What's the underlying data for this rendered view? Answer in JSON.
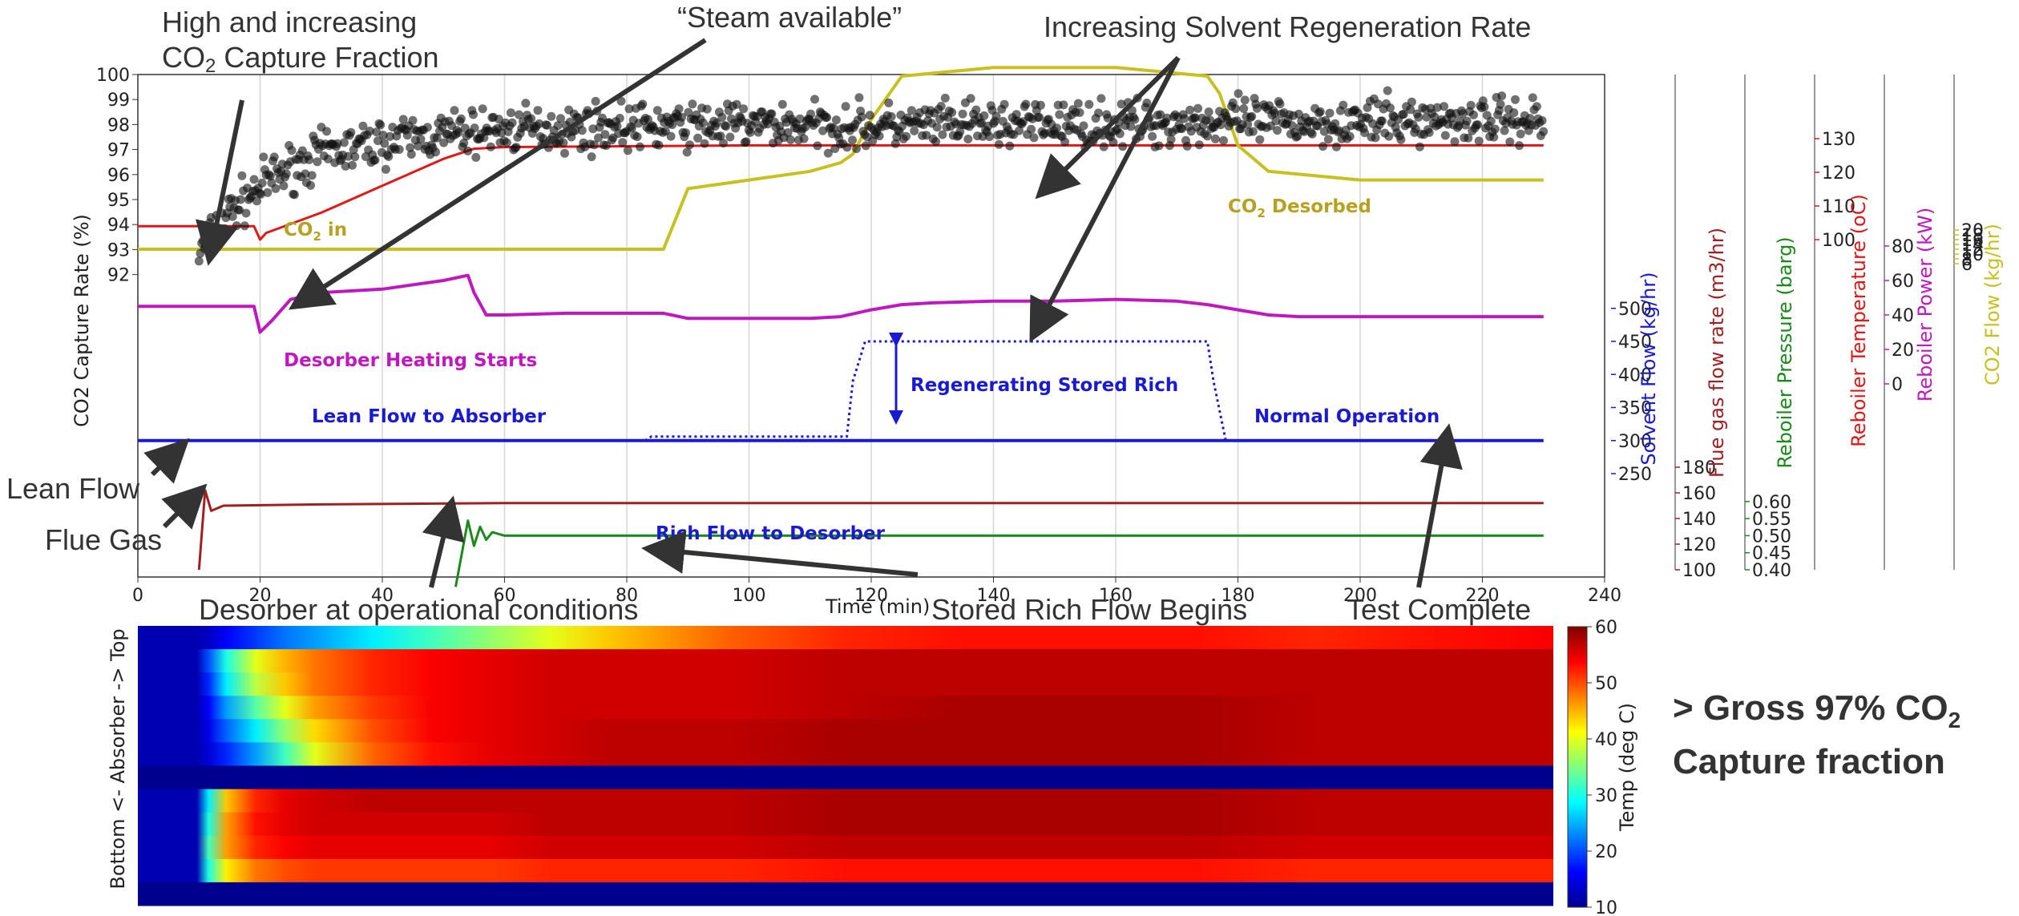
{
  "chart_data": [
    {
      "type": "line",
      "xlabel": "Time (min)",
      "xlim": [
        0,
        240
      ],
      "x_ticks": [
        "0",
        "20",
        "40",
        "60",
        "80",
        "100",
        "120",
        "140",
        "160",
        "180",
        "200",
        "220",
        "240"
      ],
      "ylabel": "CO2 Capture Rate (%)",
      "y_ticks": [
        "100",
        "99",
        "98",
        "97",
        "96",
        "95",
        "94",
        "93",
        "92"
      ],
      "grid": "vertical",
      "right_axes": [
        {
          "label": "Solvent Flow (kg/hr)",
          "color": "#1a1ad0",
          "ticks": [
            "500",
            "450",
            "400",
            "350",
            "300",
            "250"
          ]
        },
        {
          "label": "Flue gas flow rate (m3/hr)",
          "color": "#a02020",
          "ticks": [
            "180",
            "160",
            "140",
            "120",
            "100"
          ]
        },
        {
          "label": "Reboiler Pressure (barg)",
          "color": "#1a8a1a",
          "ticks": [
            "0.60",
            "0.55",
            "0.50",
            "0.45",
            "0.40"
          ]
        },
        {
          "label": "Reboiler Temperature (oC)",
          "color": "#e01818",
          "ticks": [
            "130",
            "120",
            "110",
            "100"
          ]
        },
        {
          "label": "Reboiler Power (kW)",
          "color": "#c018c0",
          "ticks": [
            "80",
            "60",
            "40",
            "20",
            "0"
          ]
        },
        {
          "label": "CO2 Flow (kg/hr)",
          "color": "#c8c020",
          "ticks": [
            "20",
            "18",
            "16",
            "14",
            "12",
            "10",
            "8",
            "6"
          ]
        }
      ],
      "series": [
        {
          "key": "capture",
          "color": "#222222",
          "x": [
            10,
            15,
            20,
            25,
            30,
            40,
            50,
            60,
            80,
            100,
            120,
            140,
            160,
            180,
            200,
            220,
            230
          ],
          "y": [
            92.8,
            94.5,
            95.5,
            96.3,
            96.8,
            97.3,
            97.6,
            97.8,
            97.9,
            98.0,
            97.9,
            98.0,
            98.0,
            98.1,
            98.1,
            98.2,
            98.2
          ]
        },
        {
          "key": "reboiler_temp",
          "color": "#e01818",
          "x": [
            0,
            19,
            20,
            21,
            30,
            40,
            50,
            55,
            60,
            100,
            150,
            230
          ],
          "y": [
            104,
            104,
            100,
            102,
            108,
            116,
            124,
            127,
            127.5,
            128,
            128,
            128
          ]
        },
        {
          "key": "reboiler_power",
          "color": "#c018c0",
          "x": [
            0,
            19,
            20,
            22,
            25,
            30,
            40,
            50,
            54,
            55,
            57,
            60,
            70,
            80,
            86,
            90,
            100,
            110,
            115,
            120,
            125,
            130,
            140,
            150,
            160,
            170,
            175,
            180,
            185,
            190,
            200,
            220,
            230
          ],
          "y": [
            100,
            100,
            85,
            92,
            104,
            108,
            110,
            115,
            118,
            108,
            95,
            95,
            96,
            96,
            96,
            93,
            93,
            93,
            94,
            98,
            101,
            102,
            103,
            103,
            104,
            103,
            101,
            98,
            95,
            94,
            94,
            94,
            94
          ]
        },
        {
          "key": "co2_flow",
          "color": "#c8c020",
          "x": [
            0,
            20,
            25,
            40,
            50,
            55,
            60,
            80,
            86,
            90,
            100,
            110,
            115,
            117,
            120,
            125,
            140,
            160,
            175,
            177,
            180,
            185,
            200,
            230
          ],
          "y": [
            100,
            100,
            100,
            100,
            100,
            100,
            100,
            100,
            100,
            107,
            108,
            109,
            110,
            111,
            115,
            120,
            121,
            121,
            120,
            118,
            112,
            109,
            108,
            108
          ]
        },
        {
          "key": "lean_flow",
          "color": "#1a1ad0",
          "x": [
            0,
            230
          ],
          "y": [
            300,
            300
          ]
        },
        {
          "key": "rich_flow",
          "color": "#1a1ad0",
          "x": [
            83,
            84,
            116,
            117,
            119,
            175,
            176,
            178
          ],
          "y": [
            300,
            306,
            306,
            390,
            450,
            450,
            390,
            300
          ]
        },
        {
          "key": "flue_gas",
          "color": "#a02020",
          "x": [
            10,
            11,
            12,
            14,
            30,
            60,
            90,
            120,
            150,
            180,
            210,
            230
          ],
          "y": [
            100,
            162,
            146,
            150,
            151,
            152,
            152,
            152,
            152,
            152,
            152,
            152
          ]
        },
        {
          "key": "reboiler_pressure",
          "color": "#1a8a1a",
          "x": [
            52,
            54,
            55,
            56,
            57,
            58,
            60,
            80,
            100,
            130,
            160,
            190,
            230
          ],
          "y": [
            0.35,
            0.544,
            0.47,
            0.526,
            0.488,
            0.51,
            0.5,
            0.5,
            0.5,
            0.5,
            0.5,
            0.5,
            0.5
          ]
        }
      ],
      "labels": {
        "co2_in": "CO",
        "co2_in_rest": " in",
        "co2_desorbed": "CO",
        "co2_desorbed_rest": " Desorbed",
        "sub2": "2",
        "desorber_heating": "Desorber Heating Starts",
        "lean_to_absorber": "Lean Flow to Absorber",
        "regenerating": "Regenerating Stored Rich",
        "normal_operation": "Normal Operation",
        "rich_to_desorber": "Rich Flow to Desorber"
      }
    },
    {
      "type": "heatmap",
      "ylabel": "Bottom <- Absorber -> Top",
      "colorbar_label": "Temp (deg C)",
      "colorbar_ticks": [
        "60",
        "50",
        "40",
        "30",
        "20",
        "10"
      ],
      "vmin": 10,
      "vmax": 60,
      "x": [
        0,
        10,
        12,
        15,
        20,
        25,
        30,
        40,
        50,
        60,
        70,
        80,
        100,
        120,
        140,
        160,
        180,
        200,
        220,
        240
      ],
      "rows": [
        [
          12,
          12,
          13,
          16,
          19,
          22,
          24,
          28,
          32,
          36,
          40,
          44,
          49,
          52,
          53,
          53,
          53,
          52,
          53,
          54
        ],
        [
          12,
          12,
          20,
          30,
          40,
          45,
          48,
          52,
          54,
          55,
          56,
          56,
          56,
          57,
          57,
          57,
          57,
          57,
          57,
          57
        ],
        [
          12,
          12,
          18,
          28,
          38,
          44,
          48,
          52,
          54,
          55,
          56,
          56,
          56,
          57,
          57,
          57,
          57,
          57,
          57,
          57
        ],
        [
          12,
          12,
          16,
          24,
          33,
          40,
          46,
          51,
          54,
          55,
          56,
          56,
          56,
          57,
          58,
          58,
          58,
          57,
          57,
          57
        ],
        [
          12,
          12,
          15,
          21,
          28,
          36,
          43,
          50,
          54,
          55,
          56,
          57,
          57,
          58,
          58,
          58,
          58,
          57,
          57,
          57
        ],
        [
          12,
          12,
          14,
          18,
          24,
          32,
          40,
          49,
          53,
          55,
          56,
          57,
          57,
          58,
          58,
          58,
          58,
          57,
          57,
          57
        ],
        [
          10,
          10,
          10,
          10,
          10,
          10,
          10,
          10,
          10,
          10,
          10,
          10,
          10,
          10,
          10,
          10,
          10,
          10,
          10,
          10
        ],
        [
          12,
          12,
          28,
          44,
          52,
          55,
          56,
          57,
          57,
          57,
          57,
          57,
          57,
          58,
          58,
          58,
          58,
          57,
          57,
          57
        ],
        [
          12,
          12,
          30,
          46,
          53,
          55,
          56,
          56,
          56,
          56,
          57,
          57,
          57,
          58,
          58,
          58,
          58,
          57,
          57,
          57
        ],
        [
          12,
          12,
          32,
          46,
          52,
          54,
          55,
          55,
          55,
          55,
          56,
          56,
          56,
          57,
          57,
          57,
          57,
          56,
          56,
          56
        ],
        [
          12,
          12,
          30,
          42,
          48,
          50,
          51,
          51,
          51,
          51,
          52,
          52,
          52,
          53,
          53,
          53,
          53,
          52,
          52,
          52
        ],
        [
          10,
          10,
          10,
          10,
          10,
          10,
          10,
          10,
          10,
          10,
          10,
          10,
          10,
          10,
          10,
          10,
          10,
          10,
          10,
          10
        ]
      ]
    }
  ],
  "annotations": {
    "high_capture_1": "High and increasing",
    "high_capture_2": "CO",
    "high_capture_sub": "2",
    "high_capture_3": " Capture Fraction",
    "steam": "“Steam available”",
    "increasing_regen": "Increasing Solvent Regeneration Rate",
    "lean_flow": "Lean Flow",
    "flue_gas": "Flue Gas",
    "desorber_operational": "Desorber at operational conditions",
    "stored_rich": "Stored Rich Flow Begins",
    "test_complete": "Test Complete"
  },
  "headline": {
    "line1": "> Gross 97% CO",
    "sub": "2",
    "line2": "Capture fraction"
  }
}
